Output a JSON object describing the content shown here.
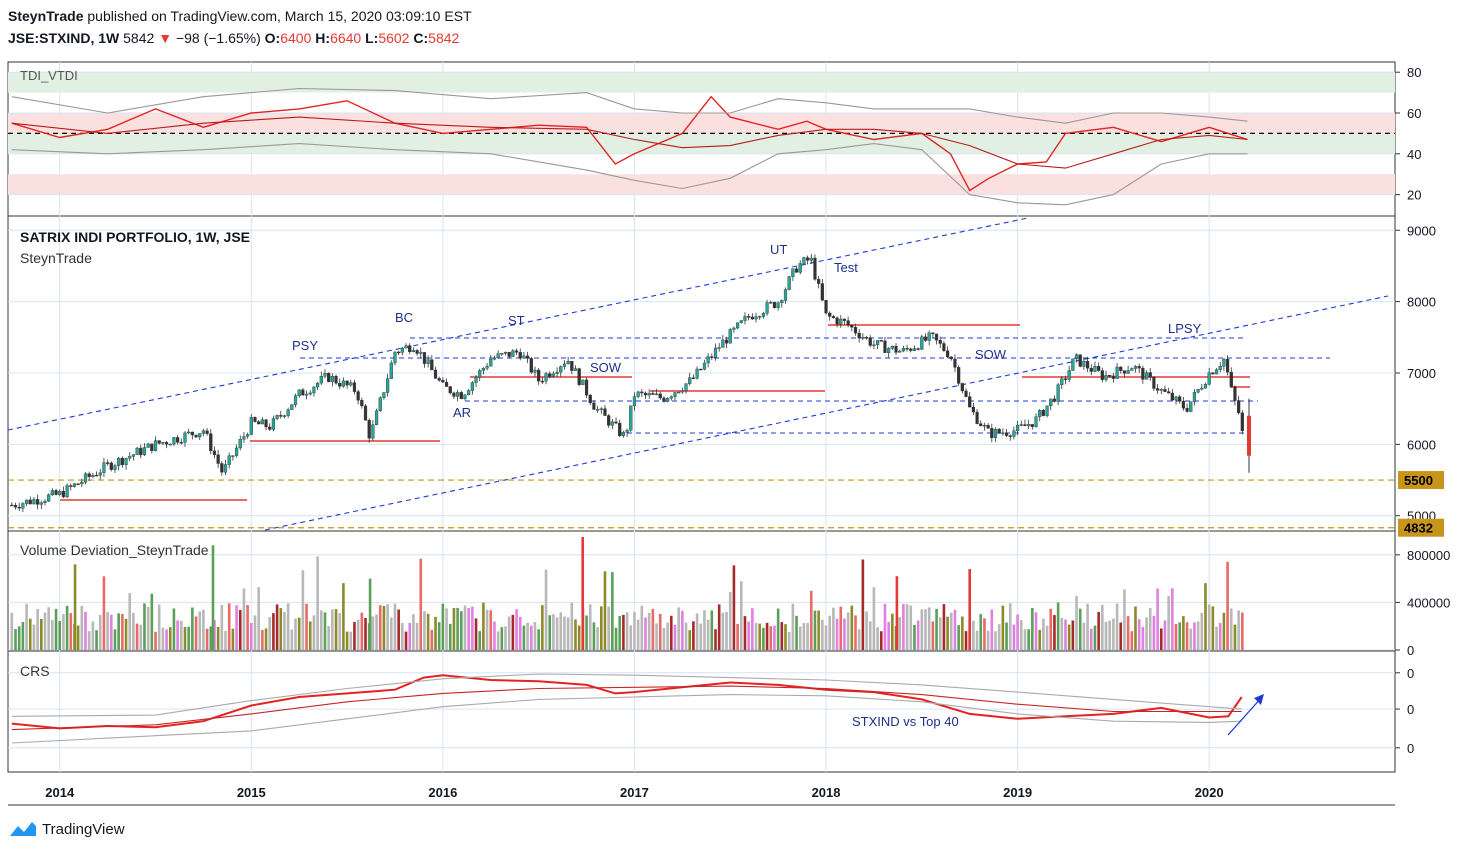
{
  "header": {
    "author": "SteynTrade",
    "published_text": "published on TradingView.com, March 15, 2020 03:09:10 EST",
    "symbol": "JSE:STXIND, 1W",
    "last": "5842",
    "change": "−98 (−1.65%)",
    "open_label": "O:",
    "open": "6400",
    "high_label": "H:",
    "high": "6640",
    "low_label": "L:",
    "low": "5602",
    "close_label": "C:",
    "close": "5842"
  },
  "brand": {
    "name": "TradingView"
  },
  "colors": {
    "grid": "#d6e4f5",
    "candle_up": "#26a69a",
    "candle_down": "#333333",
    "dashed_blue": "#1e3ad6",
    "red_line": "#e53935",
    "gold_label": "#c8941a"
  },
  "chart_data": [
    {
      "type": "line",
      "panel": "oscillator",
      "title": "TDI_VTDI",
      "y_ticks": [
        "80",
        "60",
        "40",
        "20"
      ],
      "ylim": [
        10,
        85
      ],
      "x_ticks": [
        "2014",
        "2015",
        "2016",
        "2017",
        "2018",
        "2019",
        "2020"
      ],
      "x_tick_years": [
        2014,
        2015,
        2016,
        2017,
        2018,
        2019,
        2020
      ],
      "xlim": [
        2013.73,
        2020.97
      ],
      "zones": [
        {
          "from": 70,
          "to": 80,
          "color": "green"
        },
        {
          "from": 40,
          "to": 60,
          "color": "mixed"
        },
        {
          "from": 20,
          "to": 30,
          "color": "red"
        }
      ],
      "midline": 50,
      "series": [
        {
          "x": [
            2013.75,
            2014.0,
            2014.25,
            2014.5,
            2014.75,
            2015.0,
            2015.25,
            2015.5,
            2015.75,
            2016.0,
            2016.25,
            2016.5,
            2016.75,
            2016.9,
            2017.0,
            2017.25,
            2017.4,
            2017.5,
            2017.75,
            2017.9,
            2018.0,
            2018.25,
            2018.5,
            2018.65,
            2018.75,
            2018.85,
            2019.0,
            2019.15,
            2019.25,
            2019.5,
            2019.75,
            2020.0,
            2020.1,
            2020.2
          ],
          "y": [
            55,
            48,
            52,
            62,
            53,
            60,
            62,
            66,
            55,
            50,
            52,
            54,
            53,
            35,
            40,
            50,
            68,
            58,
            52,
            56,
            52,
            47,
            50,
            40,
            22,
            28,
            35,
            36,
            50,
            53,
            46,
            53,
            50,
            47
          ]
        },
        {
          "x": [
            2013.75,
            2014.25,
            2014.75,
            2015.25,
            2015.75,
            2016.25,
            2016.75,
            2017.0,
            2017.25,
            2017.5,
            2017.75,
            2018.0,
            2018.25,
            2018.5,
            2018.75,
            2019.0,
            2019.25,
            2019.5,
            2019.75,
            2020.0,
            2020.2
          ],
          "y": [
            55,
            50,
            55,
            58,
            55,
            53,
            52,
            47,
            43,
            44,
            49,
            52,
            52,
            50,
            44,
            35,
            33,
            40,
            47,
            49,
            47
          ]
        },
        {
          "x": [
            2013.75,
            2014.25,
            2014.75,
            2015.25,
            2015.75,
            2016.25,
            2016.75,
            2017.0,
            2017.25,
            2017.5,
            2017.75,
            2018.0,
            2018.25,
            2018.5,
            2018.75,
            2019.0,
            2019.25,
            2019.5,
            2019.75,
            2020.0,
            2020.2
          ],
          "y": [
            68,
            60,
            68,
            72,
            71,
            67,
            70,
            62,
            60,
            60,
            67,
            65,
            62,
            62,
            62,
            58,
            55,
            60,
            60,
            58,
            56
          ]
        },
        {
          "x": [
            2013.75,
            2014.25,
            2014.75,
            2015.25,
            2015.75,
            2016.25,
            2016.75,
            2017.0,
            2017.25,
            2017.5,
            2017.75,
            2018.0,
            2018.25,
            2018.5,
            2018.75,
            2019.0,
            2019.25,
            2019.5,
            2019.75,
            2020.0,
            2020.2
          ],
          "y": [
            42,
            40,
            42,
            45,
            42,
            40,
            32,
            27,
            23,
            28,
            40,
            42,
            45,
            42,
            20,
            16,
            15,
            20,
            35,
            40,
            40
          ]
        }
      ]
    },
    {
      "type": "candlestick",
      "panel": "price",
      "title": "SATRIX INDI PORTFOLIO, 1W, JSE",
      "subtitle": "SteynTrade",
      "y_ticks": [
        "9000",
        "8000",
        "7000",
        "6000",
        "5000"
      ],
      "ylim": [
        4800,
        9200
      ],
      "price_labels": [
        "5500",
        "4832"
      ],
      "x": [
        2013.75,
        2014.0,
        2014.25,
        2014.5,
        2014.75,
        2014.85,
        2015.0,
        2015.1,
        2015.25,
        2015.4,
        2015.55,
        2015.62,
        2015.75,
        2015.85,
        2016.0,
        2016.1,
        2016.25,
        2016.4,
        2016.5,
        2016.65,
        2016.8,
        2016.95,
        2017.0,
        2017.15,
        2017.3,
        2017.45,
        2017.6,
        2017.75,
        2017.85,
        2017.92,
        2018.0,
        2018.1,
        2018.25,
        2018.4,
        2018.55,
        2018.65,
        2018.75,
        2018.85,
        2019.0,
        2019.1,
        2019.2,
        2019.3,
        2019.45,
        2019.6,
        2019.75,
        2019.88,
        2020.0,
        2020.08,
        2020.12,
        2020.16,
        2020.19
      ],
      "close": [
        5150,
        5300,
        5700,
        6000,
        6200,
        5600,
        6300,
        6250,
        6700,
        6950,
        6750,
        6100,
        7300,
        7400,
        6800,
        6700,
        7200,
        7300,
        6900,
        7200,
        6500,
        6100,
        6700,
        6650,
        6900,
        7400,
        7800,
        8000,
        8500,
        8600,
        7800,
        7700,
        7400,
        7300,
        7500,
        7250,
        6500,
        6150,
        6200,
        6350,
        6700,
        7200,
        6950,
        7100,
        6750,
        6500,
        7000,
        7200,
        6700,
        6400,
        5842
      ]
    },
    {
      "type": "bar",
      "panel": "volume",
      "title": "Volume Deviation_SteynTrade",
      "y_ticks": [
        "800000",
        "400000",
        "0"
      ],
      "ylim": [
        0,
        1000000
      ]
    },
    {
      "type": "line",
      "panel": "crs",
      "title": "CRS",
      "y_ticks": [
        "0",
        "0",
        "0"
      ],
      "annotations_text": "STXIND vs Top 40",
      "ylim": [
        0,
        10
      ],
      "series": [
        {
          "x": [
            2013.75,
            2014.0,
            2014.25,
            2014.5,
            2014.75,
            2015.0,
            2015.25,
            2015.5,
            2015.75,
            2015.9,
            2016.0,
            2016.25,
            2016.5,
            2016.75,
            2016.9,
            2017.0,
            2017.25,
            2017.5,
            2017.75,
            2018.0,
            2018.25,
            2018.5,
            2018.75,
            2019.0,
            2019.25,
            2019.5,
            2019.75,
            2020.0,
            2020.1,
            2020.17
          ],
          "y": [
            4.0,
            3.6,
            3.8,
            3.7,
            4.2,
            5.5,
            6.2,
            6.5,
            6.8,
            7.8,
            8.0,
            7.6,
            7.5,
            7.2,
            6.5,
            6.6,
            7.0,
            7.4,
            7.2,
            6.8,
            6.6,
            6.0,
            4.8,
            4.4,
            4.6,
            4.8,
            5.3,
            4.5,
            4.6,
            6.2
          ]
        },
        {
          "x": [
            2013.75,
            2014.5,
            2015.0,
            2015.5,
            2016.0,
            2016.5,
            2017.0,
            2017.5,
            2018.0,
            2018.5,
            2019.0,
            2019.5,
            2020.0,
            2020.17
          ],
          "y": [
            3.5,
            3.9,
            4.8,
            5.8,
            6.5,
            6.9,
            7.0,
            7.1,
            6.9,
            6.4,
            5.6,
            5.0,
            5.0,
            5.0
          ]
        },
        {
          "x": [
            2013.75,
            2014.5,
            2015.0,
            2015.5,
            2016.0,
            2016.5,
            2017.0,
            2017.5,
            2018.0,
            2018.5,
            2019.0,
            2019.5,
            2020.0,
            2020.17
          ],
          "y": [
            4.6,
            4.7,
            5.9,
            6.9,
            7.7,
            8.1,
            8.0,
            7.8,
            7.6,
            7.2,
            6.6,
            6.0,
            5.4,
            5.2
          ]
        },
        {
          "x": [
            2013.75,
            2014.5,
            2015.0,
            2015.5,
            2016.0,
            2016.5,
            2017.0,
            2017.5,
            2018.0,
            2018.5,
            2019.0,
            2019.5,
            2020.0,
            2020.17
          ],
          "y": [
            2.4,
            3.0,
            3.4,
            4.4,
            5.4,
            6.0,
            6.2,
            6.4,
            6.3,
            5.8,
            4.8,
            4.2,
            4.1,
            4.2
          ]
        }
      ]
    }
  ],
  "annotations": {
    "psy": "PSY",
    "bc": "BC",
    "st": "ST",
    "ar": "AR",
    "sow1": "SOW",
    "ut": "UT",
    "test": "Test",
    "sow2": "SOW",
    "lpsy": "LPSY"
  }
}
